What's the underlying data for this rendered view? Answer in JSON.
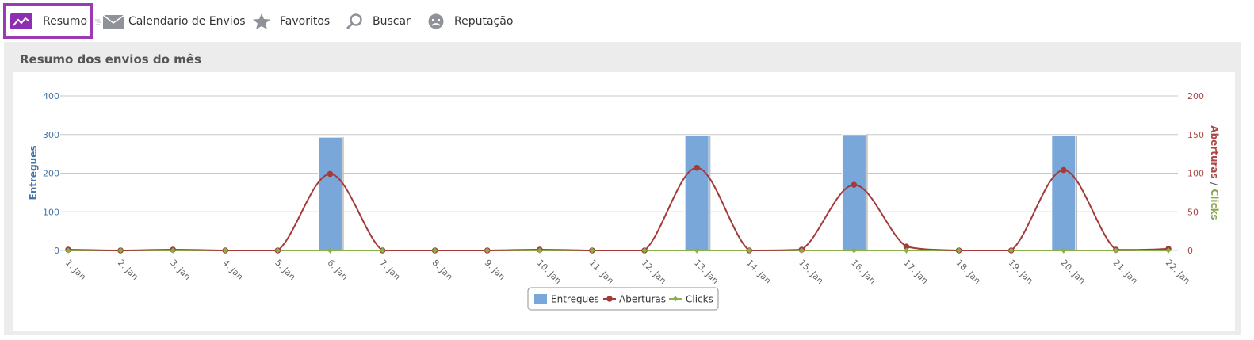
{
  "tabs": [
    {
      "label": "Resumo",
      "icon": "trend-chart-icon",
      "active": true
    },
    {
      "label": "Calendario de Envios",
      "icon": "envelope-icon",
      "active": false
    },
    {
      "label": "Favoritos",
      "icon": "star-icon",
      "active": false
    },
    {
      "label": "Buscar",
      "icon": "magnifier-icon",
      "active": false
    },
    {
      "label": "Reputação",
      "icon": "face-icon",
      "active": false
    }
  ],
  "panel": {
    "title": "Resumo dos envios do mês"
  },
  "colors": {
    "accent": "#8e2fb2",
    "entregues": "#79a7d9",
    "aberturas": "#a33b3b",
    "clicks": "#8bb04a",
    "left_axis": "#4572a7",
    "right_axis_aberturas": "#aa4643",
    "right_axis_clicks": "#89a54e"
  },
  "chart_data": {
    "type": "bar",
    "categories": [
      "1. Jan",
      "2. Jan",
      "3. Jan",
      "4. Jan",
      "5. Jan",
      "6. Jan",
      "7. Jan",
      "8. Jan",
      "9. Jan",
      "10. Jan",
      "11. Jan",
      "12. Jan",
      "13. Jan",
      "14. Jan",
      "15. Jan",
      "16. Jan",
      "17. Jan",
      "18. Jan",
      "19. Jan",
      "20. Jan",
      "21. Jan",
      "22. Jan"
    ],
    "series": [
      {
        "name": "Entregues",
        "type": "bar",
        "axis": "left",
        "values": [
          0,
          0,
          0,
          0,
          0,
          293,
          0,
          0,
          0,
          0,
          0,
          0,
          297,
          0,
          0,
          300,
          0,
          0,
          0,
          297,
          0,
          0
        ]
      },
      {
        "name": "Aberturas",
        "type": "line",
        "axis": "right",
        "values": [
          1,
          0,
          1,
          0,
          0,
          99,
          0,
          0,
          0,
          1,
          0,
          0,
          107,
          0,
          1,
          85,
          5,
          0,
          0,
          104,
          1,
          2
        ]
      },
      {
        "name": "Clicks",
        "type": "line",
        "axis": "right",
        "values": [
          0,
          0,
          0,
          0,
          0,
          0,
          0,
          0,
          0,
          0,
          0,
          0,
          0,
          0,
          0,
          0,
          0,
          0,
          0,
          0,
          0,
          0
        ]
      }
    ],
    "y_left": {
      "label": "Entregues",
      "ticks": [
        0,
        100,
        200,
        300,
        400
      ],
      "range": [
        0,
        400
      ]
    },
    "y_right": {
      "label_parts": [
        "Aberturas",
        "/",
        "Clicks"
      ],
      "ticks": [
        0,
        50,
        100,
        150,
        200
      ],
      "range": [
        0,
        200
      ]
    },
    "grid": true,
    "legend_position": "bottom-center"
  }
}
